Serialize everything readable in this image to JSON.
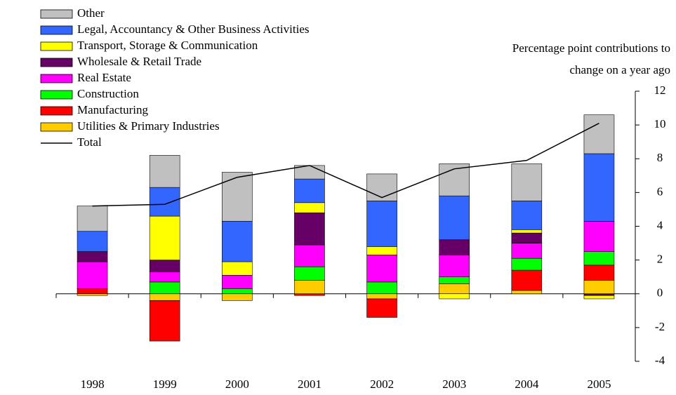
{
  "chart_data": {
    "type": "stacked_bar",
    "ylabel": [
      "Percentage point contributions to",
      "change on a year ago"
    ],
    "categories": [
      "1998",
      "1999",
      "2000",
      "2001",
      "2002",
      "2003",
      "2004",
      "2005"
    ],
    "series": [
      {
        "name": "Utilities & Primary Industries",
        "color": "#ffcc00",
        "values": [
          -0.1,
          -0.4,
          -0.4,
          0.8,
          -0.3,
          0.6,
          0.2,
          0.8
        ]
      },
      {
        "name": "Manufacturing",
        "color": "#ff0000",
        "values": [
          0.3,
          -2.4,
          0,
          -0.1,
          -1.1,
          0,
          1.2,
          0.9
        ]
      },
      {
        "name": "Construction",
        "color": "#00ff00",
        "values": [
          0,
          0.7,
          0.3,
          0.8,
          0.7,
          0.4,
          0.7,
          0.8
        ]
      },
      {
        "name": "Real Estate",
        "color": "#ff00ff",
        "values": [
          1.6,
          0.6,
          0.8,
          1.3,
          1.6,
          1.3,
          0.9,
          1.8
        ]
      },
      {
        "name": "Wholesale & Retail Trade",
        "color": "#660066",
        "values": [
          0.6,
          0.7,
          0,
          1.9,
          0,
          0.9,
          0.6,
          -0.1
        ]
      },
      {
        "name": "Transport, Storage & Communication",
        "color": "#ffff00",
        "values": [
          0,
          2.6,
          0.8,
          0.6,
          0.5,
          -0.3,
          0.2,
          -0.2
        ]
      },
      {
        "name": "Legal, Accountancy & Other Business Activities",
        "color": "#3366ff",
        "values": [
          1.2,
          1.7,
          2.4,
          1.4,
          2.7,
          2.6,
          1.7,
          4.0
        ]
      },
      {
        "name": "Other",
        "color": "#c0c0c0",
        "values": [
          1.5,
          1.9,
          2.9,
          0.8,
          1.6,
          1.9,
          2.2,
          2.3
        ]
      }
    ],
    "total": {
      "name": "Total",
      "color": "#000000",
      "values": [
        5.2,
        5.3,
        6.9,
        7.6,
        5.7,
        7.4,
        7.9,
        10.1
      ]
    },
    "ylim": [
      -4,
      12
    ],
    "yticks": [
      -4,
      -2,
      0,
      2,
      4,
      6,
      8,
      10,
      12
    ]
  }
}
